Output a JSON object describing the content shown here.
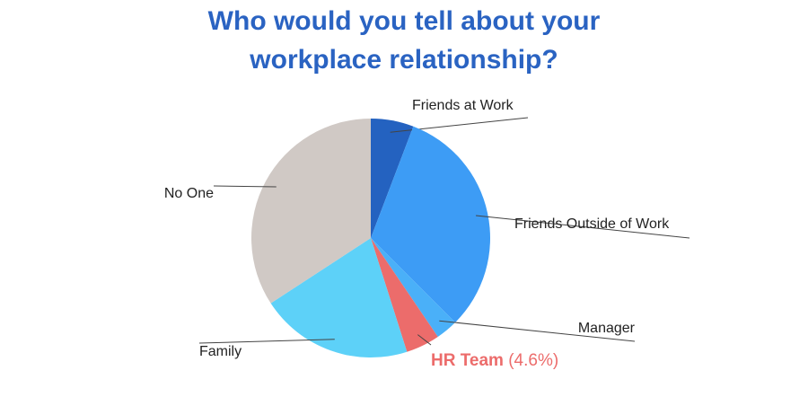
{
  "chart_data": {
    "type": "pie",
    "title": "Who would you tell about your workplace relationship?",
    "categories": [
      "Friends at Work",
      "Friends Outside of Work",
      "Manager",
      "HR Team",
      "Family",
      "No One"
    ],
    "values": [
      5.8,
      31.7,
      3.0,
      4.6,
      20.7,
      34.2
    ],
    "value_labels": [
      null,
      null,
      null,
      "(4.6%)",
      null,
      null
    ],
    "colors": [
      "#2462c0",
      "#3d9cf5",
      "#4ab0f8",
      "#ec6c6b",
      "#5dd1f8",
      "#d0c9c5"
    ]
  }
}
